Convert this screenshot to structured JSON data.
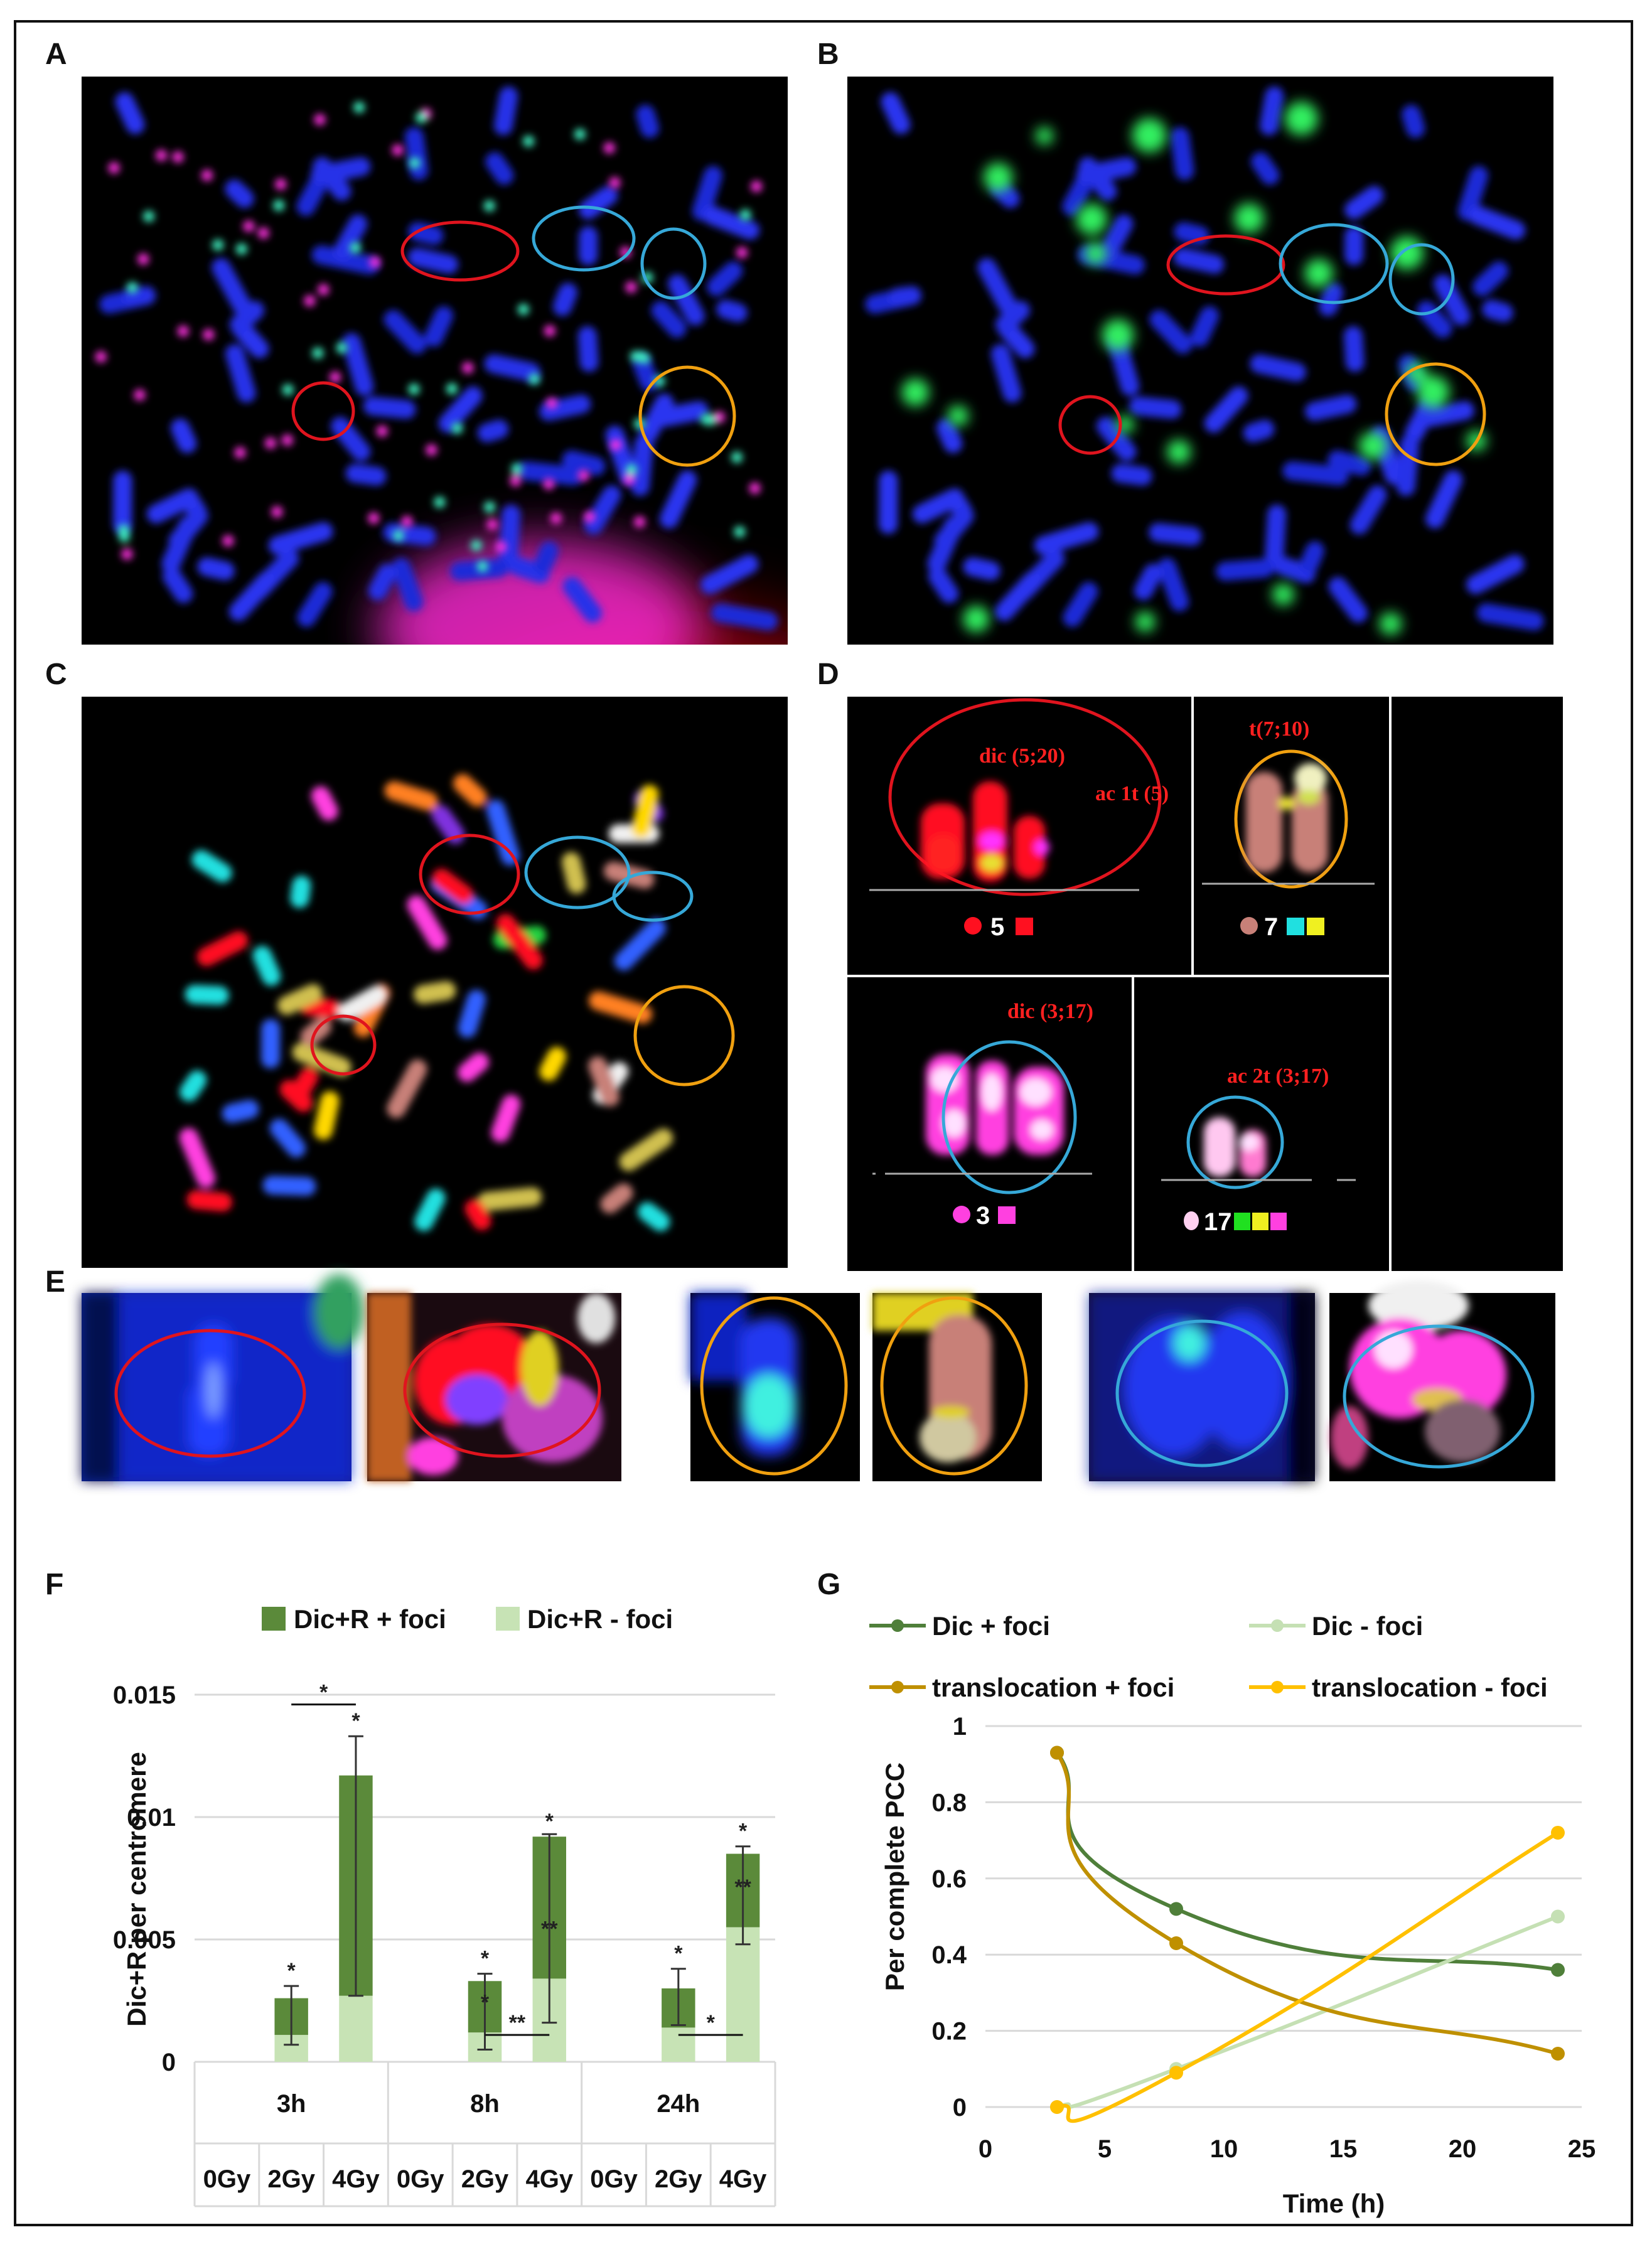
{
  "panels": {
    "A": "A",
    "B": "B",
    "C": "C",
    "D": "D",
    "E": "E",
    "F": "F",
    "G": "G"
  },
  "karyotype": {
    "label_dic_5_20": "dic (5;20)",
    "label_ac1t_5": "ac 1t (5)",
    "label_t7_10": "t(7;10)",
    "label_dic_3_17": "dic (3;17)",
    "label_ac2t_3_17": "ac 2t (3;17)",
    "chrom_5": "5",
    "chrom_7": "7",
    "chrom_3": "3",
    "chrom_17": "17"
  },
  "colors": {
    "dark_green": "#5b8a3a",
    "light_green": "#c7e3b5",
    "dic_plus": "#4f7f3a",
    "dic_minus": "#c5e0b4",
    "trans_plus": "#bf9000",
    "trans_minus": "#ffc000",
    "circle_red": "#e0141e",
    "circle_blue": "#36a8d8",
    "circle_orange": "#f0a010"
  },
  "chart_data": [
    {
      "type": "bar",
      "panel": "F",
      "title": "",
      "ylabel": "Dic+R per centromere",
      "xlabel": "",
      "ylim": [
        0,
        0.015
      ],
      "yticks": [
        "0",
        "0.005",
        "0.01",
        "0.015"
      ],
      "yticks_values": [
        0,
        0.005,
        0.01,
        0.015
      ],
      "legend": {
        "position": "top",
        "entries": [
          "Dic+R + foci",
          "Dic+R - foci"
        ]
      },
      "time_groups": [
        "3h",
        "8h",
        "24h"
      ],
      "categories": [
        "0Gy",
        "2Gy",
        "4Gy",
        "0Gy",
        "2Gy",
        "4Gy",
        "0Gy",
        "2Gy",
        "4Gy"
      ],
      "stacked": true,
      "series": [
        {
          "name": "Dic+R - foci",
          "values": [
            0,
            0.0011,
            0.0027,
            0,
            0.0012,
            0.0034,
            0,
            0.0014,
            0.0055
          ]
        },
        {
          "name": "Dic+R + foci",
          "values": [
            0,
            0.0015,
            0.009,
            0,
            0.0021,
            0.0058,
            0,
            0.0016,
            0.003
          ]
        }
      ],
      "error_bars": [
        {
          "index": 1,
          "low": 0.0007,
          "high": 0.0031
        },
        {
          "index": 2,
          "low": 0.0027,
          "high": 0.0133
        },
        {
          "index": 4,
          "low": 0.0005,
          "high": 0.0036
        },
        {
          "index": 5,
          "low": 0.0016,
          "high": 0.0093
        },
        {
          "index": 7,
          "low": 0.0015,
          "high": 0.0038
        },
        {
          "index": 8,
          "low": 0.0048,
          "high": 0.0088
        }
      ],
      "annotations": [
        {
          "text": "*",
          "index": 1,
          "y": 0.0038
        },
        {
          "text": "*",
          "index": 2,
          "y": 0.014
        },
        {
          "text": "*",
          "index": 4,
          "y": 0.0043
        },
        {
          "text": "*",
          "index": 4,
          "y": 0.0025
        },
        {
          "text": "*",
          "index": 5,
          "y": 0.0099
        },
        {
          "text": "**",
          "index": 5,
          "y": 0.0055
        },
        {
          "text": "*",
          "index": 7,
          "y": 0.0045
        },
        {
          "text": "*",
          "index": 8,
          "y": 0.0095
        },
        {
          "text": "**",
          "index": 8,
          "y": 0.0072
        }
      ],
      "brackets": [
        {
          "text": "*",
          "from": 1,
          "to": 2,
          "y": 0.0146
        },
        {
          "text": "**",
          "from": 4,
          "to": 5,
          "y": 0.0011
        },
        {
          "text": "*",
          "from": 7,
          "to": 8,
          "y": 0.0011
        }
      ]
    },
    {
      "type": "line",
      "panel": "G",
      "title": "",
      "xlabel": "Time (h)",
      "ylabel": "Per complete PCC",
      "xlim": [
        0,
        25
      ],
      "ylim": [
        0,
        1
      ],
      "xticks": [
        "0",
        "5",
        "10",
        "15",
        "20",
        "25"
      ],
      "xticks_values": [
        0,
        5,
        10,
        15,
        20,
        25
      ],
      "yticks": [
        "0",
        "0.2",
        "0.4",
        "0.6",
        "0.8",
        "1"
      ],
      "yticks_values": [
        0,
        0.2,
        0.4,
        0.6,
        0.8,
        1
      ],
      "grid": true,
      "legend": {
        "position": "top"
      },
      "series": [
        {
          "name": "Dic + foci",
          "color": "#4f7f3a",
          "x": [
            3,
            8,
            24
          ],
          "y": [
            0.93,
            0.52,
            0.36
          ]
        },
        {
          "name": "Dic - foci",
          "color": "#c5e0b4",
          "x": [
            3,
            8,
            24
          ],
          "y": [
            0,
            0.1,
            0.5
          ]
        },
        {
          "name": "translocation + foci",
          "color": "#bf9000",
          "x": [
            3,
            8,
            24
          ],
          "y": [
            0.93,
            0.43,
            0.14
          ]
        },
        {
          "name": "translocation - foci",
          "color": "#ffc000",
          "x": [
            3,
            8,
            24
          ],
          "y": [
            0,
            0.09,
            0.72
          ]
        }
      ]
    }
  ]
}
